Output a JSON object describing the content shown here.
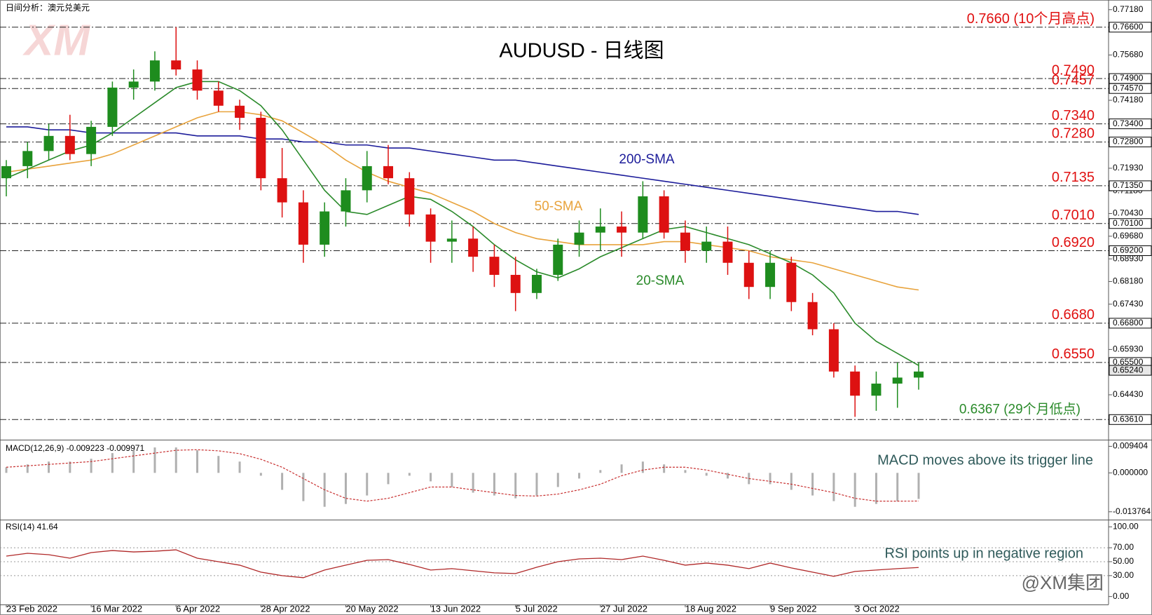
{
  "chart_data": [
    {
      "type": "candlestick",
      "title": "AUDUSD - 日线图",
      "subtitle": "日间分析：澳元兑美元",
      "watermark": "XM",
      "credit": "@XM集团",
      "categories": [
        "23 Feb 2022",
        null,
        null,
        null,
        "16 Mar 2022",
        null,
        null,
        null,
        "6 Apr 2022",
        null,
        null,
        null,
        "28 Apr 2022",
        null,
        null,
        null,
        "20 May 2022",
        null,
        null,
        null,
        "13 Jun 2022",
        null,
        null,
        null,
        "5 Jul 2022",
        null,
        null,
        null,
        "27 Jul 2022",
        null,
        null,
        null,
        "18 Aug 2022",
        null,
        null,
        null,
        "9 Sep 2022",
        null,
        null,
        null,
        "3 Oct 2022",
        null,
        null,
        null
      ],
      "open": [
        0.716,
        0.72,
        0.725,
        0.73,
        0.724,
        0.733,
        0.746,
        0.748,
        0.755,
        0.752,
        0.745,
        0.74,
        0.736,
        0.716,
        0.708,
        0.694,
        0.705,
        0.712,
        0.72,
        0.716,
        0.704,
        0.695,
        0.696,
        0.69,
        0.684,
        0.678,
        0.684,
        0.694,
        0.698,
        0.7,
        0.698,
        0.71,
        0.698,
        0.692,
        0.695,
        0.688,
        0.68,
        0.688,
        0.675,
        0.666,
        0.652,
        0.644,
        0.648,
        0.65
      ],
      "high": [
        0.722,
        0.728,
        0.734,
        0.737,
        0.735,
        0.748,
        0.752,
        0.758,
        0.766,
        0.755,
        0.748,
        0.742,
        0.738,
        0.726,
        0.712,
        0.708,
        0.716,
        0.725,
        0.727,
        0.718,
        0.706,
        0.702,
        0.7,
        0.694,
        0.69,
        0.686,
        0.696,
        0.702,
        0.706,
        0.705,
        0.715,
        0.712,
        0.702,
        0.7,
        0.7,
        0.692,
        0.692,
        0.69,
        0.678,
        0.668,
        0.654,
        0.652,
        0.655,
        0.655
      ],
      "low": [
        0.71,
        0.716,
        0.722,
        0.722,
        0.72,
        0.73,
        0.742,
        0.745,
        0.75,
        0.742,
        0.738,
        0.732,
        0.712,
        0.703,
        0.688,
        0.69,
        0.7,
        0.708,
        0.714,
        0.7,
        0.688,
        0.688,
        0.685,
        0.68,
        0.672,
        0.676,
        0.682,
        0.69,
        0.692,
        0.69,
        0.696,
        0.696,
        0.688,
        0.688,
        0.684,
        0.676,
        0.676,
        0.672,
        0.664,
        0.65,
        0.637,
        0.639,
        0.64,
        0.646
      ],
      "close": [
        0.72,
        0.725,
        0.73,
        0.724,
        0.733,
        0.746,
        0.748,
        0.755,
        0.752,
        0.745,
        0.74,
        0.736,
        0.716,
        0.708,
        0.694,
        0.705,
        0.712,
        0.72,
        0.716,
        0.704,
        0.695,
        0.696,
        0.69,
        0.684,
        0.678,
        0.684,
        0.694,
        0.698,
        0.7,
        0.698,
        0.71,
        0.698,
        0.692,
        0.695,
        0.688,
        0.68,
        0.688,
        0.675,
        0.666,
        0.652,
        0.644,
        0.648,
        0.65,
        0.652
      ],
      "up_color": "#1e8c1e",
      "down_color": "#dd1111",
      "series": [
        {
          "name": "200-SMA",
          "color": "#1c1c9a",
          "values": [
            0.733,
            0.733,
            0.732,
            0.732,
            0.731,
            0.731,
            0.731,
            0.731,
            0.731,
            0.73,
            0.73,
            0.73,
            0.729,
            0.729,
            0.728,
            0.728,
            0.727,
            0.727,
            0.726,
            0.726,
            0.725,
            0.724,
            0.723,
            0.722,
            0.722,
            0.721,
            0.72,
            0.719,
            0.718,
            0.717,
            0.716,
            0.715,
            0.714,
            0.713,
            0.712,
            0.711,
            0.71,
            0.709,
            0.708,
            0.707,
            0.706,
            0.705,
            0.705,
            0.704
          ]
        },
        {
          "name": "50-SMA",
          "color": "#e8a33c",
          "values": [
            0.718,
            0.719,
            0.72,
            0.721,
            0.722,
            0.724,
            0.727,
            0.73,
            0.733,
            0.736,
            0.738,
            0.738,
            0.737,
            0.735,
            0.731,
            0.727,
            0.722,
            0.718,
            0.715,
            0.713,
            0.711,
            0.708,
            0.705,
            0.701,
            0.698,
            0.696,
            0.695,
            0.694,
            0.694,
            0.694,
            0.694,
            0.695,
            0.695,
            0.694,
            0.693,
            0.692,
            0.69,
            0.689,
            0.688,
            0.686,
            0.684,
            0.682,
            0.68,
            0.679
          ]
        },
        {
          "name": "20-SMA",
          "color": "#2a8a2a",
          "values": [
            0.716,
            0.719,
            0.722,
            0.725,
            0.727,
            0.731,
            0.736,
            0.741,
            0.746,
            0.748,
            0.748,
            0.745,
            0.74,
            0.732,
            0.722,
            0.712,
            0.705,
            0.704,
            0.707,
            0.71,
            0.709,
            0.705,
            0.7,
            0.694,
            0.689,
            0.685,
            0.683,
            0.686,
            0.69,
            0.693,
            0.696,
            0.699,
            0.7,
            0.698,
            0.696,
            0.694,
            0.691,
            0.688,
            0.684,
            0.678,
            0.668,
            0.662,
            0.658,
            0.654
          ]
        }
      ],
      "levels": [
        {
          "value": 0.766,
          "axis_label": "0.76600",
          "label": "0.7660 (10个月高点)"
        },
        {
          "value": 0.749,
          "axis_label": "0.74900",
          "label": "0.7490"
        },
        {
          "value": 0.7457,
          "axis_label": "0.74570",
          "label": "0.7457"
        },
        {
          "value": 0.734,
          "axis_label": "0.73400",
          "label": "0.7340"
        },
        {
          "value": 0.728,
          "axis_label": "0.72800",
          "label": "0.7280"
        },
        {
          "value": 0.7135,
          "axis_label": "0.71350",
          "label": "0.7135"
        },
        {
          "value": 0.701,
          "axis_label": "0.70100",
          "label": "0.7010"
        },
        {
          "value": 0.692,
          "axis_label": "0.69200",
          "label": "0.6920"
        },
        {
          "value": 0.668,
          "axis_label": "0.66800",
          "label": "0.6680"
        },
        {
          "value": 0.655,
          "axis_label": "0.65500",
          "label": "0.6550"
        },
        {
          "value": 0.6361,
          "axis_label": "0.63610"
        }
      ],
      "level_color": "#e01010",
      "annotations": [
        {
          "text": "0.6367 (29个月低点)",
          "value": 0.6367,
          "color": "#2a8a2a"
        }
      ],
      "current_price": {
        "value": 0.6524,
        "label": "0.65240"
      },
      "ylim": [
        0.6299,
        0.775
      ],
      "yticks": [
        {
          "value": 0.7718,
          "label": "0.77180"
        },
        {
          "value": 0.7568,
          "label": "0.75680"
        },
        {
          "value": 0.7418,
          "label": "0.74180"
        },
        {
          "value": 0.7193,
          "label": "0.71930"
        },
        {
          "value": 0.7118,
          "label": "0.71180"
        },
        {
          "value": 0.7043,
          "label": "0.70430"
        },
        {
          "value": 0.6968,
          "label": "0.69680"
        },
        {
          "value": 0.6893,
          "label": "0.68930"
        },
        {
          "value": 0.6818,
          "label": "0.68180"
        },
        {
          "value": 0.6743,
          "label": "0.67430"
        },
        {
          "value": 0.6593,
          "label": "0.65930"
        },
        {
          "value": 0.6443,
          "label": "0.64430"
        }
      ]
    },
    {
      "type": "macd",
      "title": "MACD(12,26,9) -0.009223 -0.009971",
      "annotation": "MACD moves above its trigger line",
      "histogram": [
        0.002,
        0.003,
        0.004,
        0.004,
        0.005,
        0.007,
        0.008,
        0.009,
        0.009,
        0.008,
        0.006,
        0.004,
        -0.001,
        -0.006,
        -0.01,
        -0.012,
        -0.011,
        -0.008,
        -0.004,
        -0.001,
        -0.003,
        -0.005,
        -0.007,
        -0.008,
        -0.009,
        -0.008,
        -0.005,
        -0.002,
        0.001,
        0.003,
        0.004,
        0.003,
        0.001,
        -0.001,
        -0.002,
        -0.004,
        -0.004,
        -0.006,
        -0.008,
        -0.01,
        -0.012,
        -0.011,
        -0.01,
        -0.009223
      ],
      "signal": [
        0.002,
        0.0025,
        0.003,
        0.0035,
        0.004,
        0.005,
        0.006,
        0.007,
        0.008,
        0.0082,
        0.0078,
        0.0068,
        0.0048,
        0.002,
        -0.002,
        -0.006,
        -0.009,
        -0.01,
        -0.009,
        -0.007,
        -0.005,
        -0.005,
        -0.006,
        -0.007,
        -0.008,
        -0.0082,
        -0.0075,
        -0.006,
        -0.004,
        -0.001,
        0.001,
        0.002,
        0.002,
        0.001,
        -0.0005,
        -0.002,
        -0.003,
        -0.004,
        -0.0055,
        -0.007,
        -0.009,
        -0.01,
        -0.01,
        -0.009971
      ],
      "histogram_color": "#b0b0b0",
      "signal_color": "#c83030",
      "ylim": [
        -0.0158,
        0.011
      ],
      "yticks": [
        {
          "value": 0.009404,
          "label": "0.009404"
        },
        {
          "value": 0,
          "label": "0.000000"
        },
        {
          "value": -0.013764,
          "label": "-0.013764"
        }
      ]
    },
    {
      "type": "line",
      "title": "RSI(14) 41.64",
      "annotation": "RSI points up in negative region",
      "values": [
        58,
        62,
        60,
        55,
        63,
        66,
        64,
        65,
        67,
        55,
        50,
        45,
        35,
        30,
        27,
        38,
        45,
        52,
        53,
        46,
        38,
        40,
        37,
        34,
        33,
        42,
        50,
        54,
        55,
        53,
        58,
        52,
        45,
        48,
        45,
        40,
        48,
        41,
        35,
        29,
        36,
        38,
        40,
        41.64
      ],
      "color": "#b02828",
      "grid": true,
      "ylim": [
        -9.4,
        107.3
      ],
      "yticks": [
        {
          "value": 100,
          "label": "100.00"
        },
        {
          "value": 70,
          "label": "70.00"
        },
        {
          "value": 50,
          "label": "50.00"
        },
        {
          "value": 30,
          "label": "30.00"
        },
        {
          "value": 0,
          "label": "0.00"
        }
      ]
    }
  ]
}
